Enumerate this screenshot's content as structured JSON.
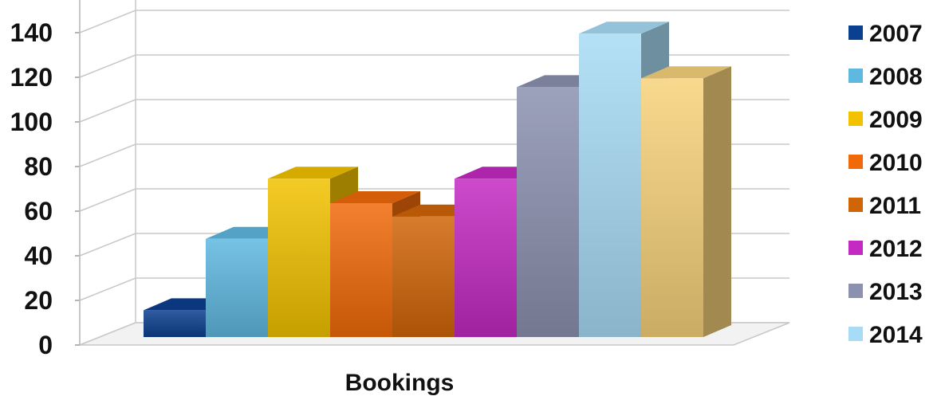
{
  "chart_data": {
    "type": "bar",
    "categories": [
      "Bookings"
    ],
    "series": [
      {
        "name": "2007",
        "values": [
          12
        ],
        "color": "#0b3f8f"
      },
      {
        "name": "2008",
        "values": [
          44
        ],
        "color": "#5fb8e0"
      },
      {
        "name": "2009",
        "values": [
          71
        ],
        "color": "#f2c200"
      },
      {
        "name": "2010",
        "values": [
          60
        ],
        "color": "#f06a0a"
      },
      {
        "name": "2011",
        "values": [
          54
        ],
        "color": "#d06508"
      },
      {
        "name": "2012",
        "values": [
          71
        ],
        "color": "#c32ac2"
      },
      {
        "name": "2013",
        "values": [
          112
        ],
        "color": "#8c91b0"
      },
      {
        "name": "2014",
        "values": [
          136
        ],
        "color": "#a8dcf6"
      },
      {
        "name": "",
        "values": [
          116
        ],
        "color": "#f7d27a"
      }
    ],
    "title": "",
    "xlabel": "",
    "ylabel": "",
    "ylim": [
      0,
      140
    ],
    "yticks": [
      "0",
      "20",
      "40",
      "60",
      "80",
      "100",
      "120",
      "140"
    ],
    "grid": true,
    "legend_position": "right",
    "style": "3d-clustered-column"
  }
}
